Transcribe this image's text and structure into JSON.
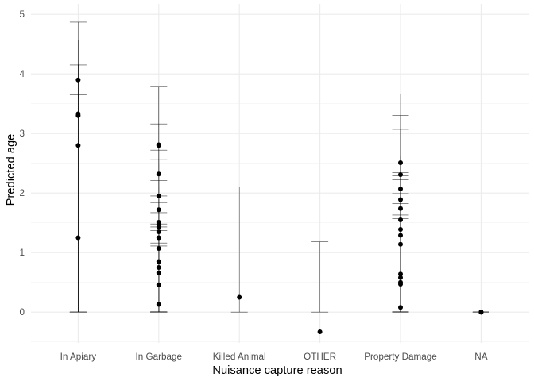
{
  "chart_data": {
    "type": "scatter",
    "title": "",
    "xlabel": "Nuisance capture reason",
    "ylabel": "Predicted age",
    "categories": [
      "In Apiary",
      "In Garbage",
      "Killed Animal",
      "OTHER",
      "Property Damage",
      "NA"
    ],
    "ylim": [
      -0.5,
      5.1
    ],
    "yticks": [
      0,
      1,
      2,
      3,
      4,
      5
    ],
    "grid": true,
    "series": [
      {
        "category": "In Apiary",
        "points": [
          {
            "y": 3.9,
            "lower": 0,
            "upper": 4.87
          },
          {
            "y": 3.33,
            "lower": 0,
            "upper": 4.57
          },
          {
            "y": 3.3,
            "lower": 0,
            "upper": 4.17
          },
          {
            "y": 2.8,
            "lower": 0,
            "upper": 4.15
          },
          {
            "y": 1.25,
            "lower": 0,
            "upper": 3.65
          }
        ]
      },
      {
        "category": "In Garbage",
        "points": [
          {
            "y": 2.81,
            "lower": 0,
            "upper": 3.79
          },
          {
            "y": 2.8,
            "lower": 0,
            "upper": 3.79
          },
          {
            "y": 2.32,
            "lower": 0,
            "upper": 3.16
          },
          {
            "y": 1.95,
            "lower": 0,
            "upper": 2.72
          },
          {
            "y": 1.72,
            "lower": 0,
            "upper": 2.56
          },
          {
            "y": 1.51,
            "lower": 0,
            "upper": 2.49
          },
          {
            "y": 1.47,
            "lower": 0,
            "upper": 2.21
          },
          {
            "y": 1.43,
            "lower": 0,
            "upper": 2.1
          },
          {
            "y": 1.35,
            "lower": 0,
            "upper": 1.95
          },
          {
            "y": 1.25,
            "lower": 0,
            "upper": 1.84
          },
          {
            "y": 1.07,
            "lower": 0,
            "upper": 1.67
          },
          {
            "y": 0.85,
            "lower": 0,
            "upper": 1.48
          },
          {
            "y": 0.75,
            "lower": 0,
            "upper": 1.43
          },
          {
            "y": 0.66,
            "lower": 0,
            "upper": 1.37
          },
          {
            "y": 0.46,
            "lower": 0,
            "upper": 1.16
          },
          {
            "y": 0.13,
            "lower": 0,
            "upper": 1.11
          }
        ]
      },
      {
        "category": "Killed Animal",
        "points": [
          {
            "y": 0.25,
            "lower": 0,
            "upper": 2.1
          }
        ]
      },
      {
        "category": "OTHER",
        "points": [
          {
            "y": -0.33,
            "lower": 0,
            "upper": 1.18
          }
        ]
      },
      {
        "category": "Property Damage",
        "points": [
          {
            "y": 2.51,
            "lower": 0,
            "upper": 3.66
          },
          {
            "y": 2.31,
            "lower": 0,
            "upper": 3.3
          },
          {
            "y": 2.07,
            "lower": 0,
            "upper": 3.07
          },
          {
            "y": 1.89,
            "lower": 0,
            "upper": 2.62
          },
          {
            "y": 1.74,
            "lower": 0,
            "upper": 2.49
          },
          {
            "y": 1.55,
            "lower": 0,
            "upper": 2.34
          },
          {
            "y": 1.39,
            "lower": 0,
            "upper": 2.29
          },
          {
            "y": 1.29,
            "lower": 0,
            "upper": 2.22
          },
          {
            "y": 1.14,
            "lower": 0,
            "upper": 2.17
          },
          {
            "y": 0.64,
            "lower": 0,
            "upper": 1.99
          },
          {
            "y": 0.58,
            "lower": 0,
            "upper": 1.82
          },
          {
            "y": 0.5,
            "lower": 0,
            "upper": 1.63
          },
          {
            "y": 0.47,
            "lower": 0,
            "upper": 1.57
          },
          {
            "y": 0.08,
            "lower": 0,
            "upper": 1.33
          }
        ]
      },
      {
        "category": "NA",
        "points": [
          {
            "y": 0,
            "lower": 0,
            "upper": 0
          },
          {
            "y": 0,
            "lower": 0,
            "upper": 0
          },
          {
            "y": 0,
            "lower": 0,
            "upper": 0
          }
        ]
      }
    ],
    "colors": {
      "points": "#000000",
      "errorbars": "#000000",
      "grid_major": "#ebebeb",
      "grid_minor": "#f2f2f2",
      "tick_text": "#4d4d4d",
      "background": "#ffffff"
    }
  }
}
